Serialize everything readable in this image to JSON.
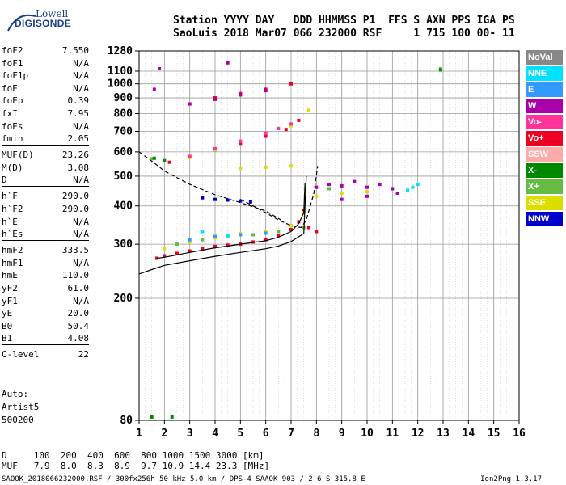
{
  "logo": {
    "line1": "Lowell",
    "line2": "DIGISONDE"
  },
  "header": {
    "line1": "Station YYYY DAY   DDD HHMMSS P1  FFS S AXN PPS IGA PS",
    "line2": "SaoLuis 2018 Mar07 066 232000 RSF     1 715 100 00- 11"
  },
  "params": [
    {
      "label": "foF2",
      "value": "7.550"
    },
    {
      "label": "foF1",
      "value": "N/A"
    },
    {
      "label": "foF1p",
      "value": "N/A"
    },
    {
      "label": "foE",
      "value": "N/A"
    },
    {
      "label": "foEp",
      "value": "0.39"
    },
    {
      "label": "fxI",
      "value": "7.95"
    },
    {
      "label": "foEs",
      "value": "N/A"
    },
    {
      "label": "fmin",
      "value": "2.05"
    },
    {
      "label": "MUF(D)",
      "value": "23.26"
    },
    {
      "label": "M(D)",
      "value": "3.08"
    },
    {
      "label": "D",
      "value": "N/A"
    },
    {
      "label": "h`F",
      "value": "290.0"
    },
    {
      "label": "h`F2",
      "value": "290.0"
    },
    {
      "label": "h`E",
      "value": "N/A"
    },
    {
      "label": "h`Es",
      "value": "N/A"
    },
    {
      "label": "hmF2",
      "value": "333.5"
    },
    {
      "label": "hmF1",
      "value": "N/A"
    },
    {
      "label": "hmE",
      "value": "110.0"
    },
    {
      "label": "yF2",
      "value": "61.0"
    },
    {
      "label": "yF1",
      "value": "N/A"
    },
    {
      "label": "yE",
      "value": "20.0"
    },
    {
      "label": "B0",
      "value": "50.4"
    },
    {
      "label": "B1",
      "value": "4.08"
    },
    {
      "label": "C-level",
      "value": "22"
    }
  ],
  "auto": {
    "line1": "Auto:",
    "line2": "Artist5",
    "line3": "500200"
  },
  "muf_table": {
    "d_row": "D     100  200  400  600  800 1000 1500 3000 [km]",
    "muf_row": "MUF   7.9  8.0  8.3  8.9  9.7 10.9 14.4 23.3 [MHz]"
  },
  "footer": {
    "left": "SAOOK_2018066232000.RSF / 300fx256h 50 kHz 5.0 km / DPS-4 SAAOK 903 / 2.6 S 315.8 E",
    "right": "Ion2Png 1.3.17"
  },
  "legend": [
    {
      "label": "NoVal",
      "color": "#888888"
    },
    {
      "label": "NNE",
      "color": "#00e0ff"
    },
    {
      "label": "E",
      "color": "#3399ff"
    },
    {
      "label": "W",
      "color": "#aa00aa"
    },
    {
      "label": "Vo-",
      "color": "#ff3399"
    },
    {
      "label": "Vo+",
      "color": "#ee0022"
    },
    {
      "label": "SSW",
      "color": "#ffaaaa"
    },
    {
      "label": "X-",
      "color": "#008800"
    },
    {
      "label": "X+",
      "color": "#66bb44"
    },
    {
      "label": "SSE",
      "color": "#dddd00"
    },
    {
      "label": "NNW",
      "color": "#0000cc"
    }
  ],
  "chart_data": {
    "type": "scatter",
    "xlim": [
      1,
      16
    ],
    "ylim": [
      80,
      1280
    ],
    "x_ticks": [
      1,
      2,
      3,
      4,
      5,
      6,
      7,
      8,
      9,
      10,
      11,
      12,
      13,
      14,
      15,
      16
    ],
    "y_ticks": [
      80,
      200,
      300,
      400,
      500,
      600,
      700,
      800,
      900,
      1000,
      1100,
      1280
    ],
    "grid": true,
    "y_scale": "logarithmic",
    "series": [
      {
        "name": "Vo+",
        "color": "#ee0022",
        "points": [
          [
            1.7,
            270
          ],
          [
            2.0,
            275
          ],
          [
            2.5,
            280
          ],
          [
            3.0,
            285
          ],
          [
            3.5,
            290
          ],
          [
            4.0,
            295
          ],
          [
            4.5,
            298
          ],
          [
            5.0,
            300
          ],
          [
            5.5,
            305
          ],
          [
            6.0,
            310
          ],
          [
            6.5,
            320
          ],
          [
            7.0,
            335
          ],
          [
            7.3,
            355
          ],
          [
            7.5,
            385
          ],
          [
            7.7,
            340
          ],
          [
            8.0,
            330
          ],
          [
            2.2,
            555
          ],
          [
            3,
            580
          ],
          [
            4,
            610
          ],
          [
            5,
            640
          ],
          [
            6,
            675
          ],
          [
            6.8,
            710
          ],
          [
            7.3,
            760
          ],
          [
            3,
            860
          ],
          [
            4,
            900
          ],
          [
            5,
            930
          ],
          [
            6,
            960
          ],
          [
            7,
            1000
          ]
        ]
      },
      {
        "name": "SSE",
        "color": "#dddd00",
        "points": [
          [
            2,
            290
          ],
          [
            3,
            305
          ],
          [
            4,
            315
          ],
          [
            5,
            325
          ],
          [
            6,
            330
          ],
          [
            7,
            345
          ],
          [
            7.5,
            380
          ],
          [
            8,
            430
          ],
          [
            9,
            440
          ],
          [
            10,
            445
          ],
          [
            3,
            575
          ],
          [
            4,
            610
          ],
          [
            5,
            650
          ],
          [
            6,
            690
          ],
          [
            7,
            730
          ],
          [
            7.7,
            820
          ],
          [
            5,
            530
          ],
          [
            6,
            535
          ],
          [
            7,
            540
          ]
        ]
      },
      {
        "name": "W",
        "color": "#aa00aa",
        "points": [
          [
            8,
            460
          ],
          [
            8.5,
            470
          ],
          [
            9,
            465
          ],
          [
            9.5,
            480
          ],
          [
            10,
            460
          ],
          [
            10.5,
            470
          ],
          [
            11,
            455
          ],
          [
            11.2,
            440
          ],
          [
            9,
            420
          ],
          [
            10,
            430
          ],
          [
            3,
            860
          ],
          [
            4,
            890
          ],
          [
            5,
            920
          ],
          [
            6,
            950
          ],
          [
            4.5,
            1170
          ],
          [
            1.8,
            1120
          ],
          [
            1.6,
            960
          ]
        ]
      },
      {
        "name": "NNW",
        "color": "#0000cc",
        "points": [
          [
            3.5,
            425
          ],
          [
            4.0,
            420
          ],
          [
            4.5,
            418
          ],
          [
            5.0,
            415
          ],
          [
            5.4,
            412
          ]
        ]
      },
      {
        "name": "X+",
        "color": "#66bb44",
        "points": [
          [
            2.5,
            300
          ],
          [
            3.5,
            310
          ],
          [
            4.5,
            318
          ],
          [
            5.5,
            322
          ],
          [
            6.5,
            330
          ],
          [
            7.5,
            340
          ],
          [
            8.5,
            455
          ],
          [
            1.5,
            570
          ],
          [
            12.9,
            1120
          ]
        ]
      },
      {
        "name": "Vo-",
        "color": "#ff3399",
        "points": [
          [
            3,
            580
          ],
          [
            4,
            615
          ],
          [
            5,
            650
          ],
          [
            6,
            690
          ],
          [
            6.5,
            715
          ],
          [
            7,
            740
          ]
        ]
      },
      {
        "name": "NNE",
        "color": "#00e0ff",
        "points": [
          [
            11.6,
            450
          ],
          [
            11.8,
            460
          ],
          [
            12,
            470
          ],
          [
            3.5,
            330
          ],
          [
            4.5,
            320
          ]
        ]
      },
      {
        "name": "E",
        "color": "#3399ff",
        "points": [
          [
            3,
            310
          ],
          [
            4,
            318
          ],
          [
            5,
            322
          ],
          [
            6,
            326
          ]
        ]
      },
      {
        "name": "X-",
        "color": "#008800",
        "points": [
          [
            1.6,
            572
          ],
          [
            2,
            562
          ],
          [
            1.5,
            82
          ],
          [
            2.3,
            82
          ],
          [
            12.9,
            1110
          ]
        ]
      }
    ],
    "profile_curve": [
      [
        1,
        240
      ],
      [
        1.5,
        248
      ],
      [
        2,
        256
      ],
      [
        3,
        265
      ],
      [
        4,
        274
      ],
      [
        5,
        282
      ],
      [
        6,
        290
      ],
      [
        6.5,
        296
      ],
      [
        7,
        306
      ],
      [
        7.5,
        325
      ],
      [
        7.6,
        500
      ]
    ],
    "trace_curve": [
      [
        1.7,
        270
      ],
      [
        2,
        272
      ],
      [
        3,
        282
      ],
      [
        4,
        292
      ],
      [
        5,
        300
      ],
      [
        6,
        308
      ],
      [
        6.5,
        316
      ],
      [
        7,
        330
      ],
      [
        7.3,
        350
      ],
      [
        7.5,
        380
      ],
      [
        7.55,
        475
      ]
    ],
    "dashed_curve": [
      [
        1,
        600
      ],
      [
        1.5,
        560
      ],
      [
        2,
        520
      ],
      [
        3,
        470
      ],
      [
        4,
        435
      ],
      [
        5,
        410
      ],
      [
        6,
        385
      ],
      [
        6.6,
        360
      ]
    ],
    "dashed_curve2": [
      [
        5,
        420
      ],
      [
        5.5,
        400
      ],
      [
        6,
        380
      ],
      [
        6.5,
        360
      ],
      [
        7,
        345
      ],
      [
        7.4,
        340
      ],
      [
        7.6,
        360
      ],
      [
        7.9,
        440
      ],
      [
        8.05,
        540
      ]
    ]
  }
}
